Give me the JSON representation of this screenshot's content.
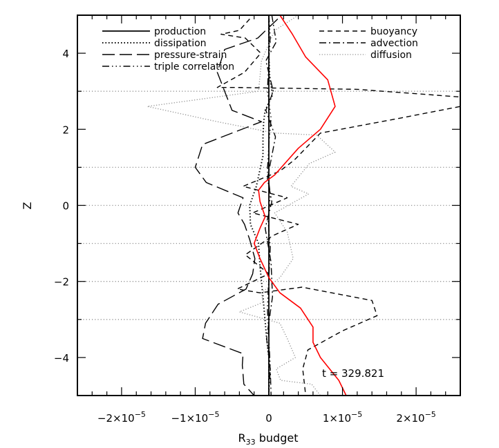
{
  "chart_data": {
    "type": "line",
    "title": "",
    "xlabel_main": "R",
    "xlabel_sub": "33",
    "xlabel_rest": " budget",
    "ylabel": "Z",
    "xlim": [
      -2.6e-05,
      2.6e-05
    ],
    "ylim": [
      -5,
      5
    ],
    "xticks": [
      {
        "value": -2e-05,
        "mant": "−2×10",
        "exp": "−5"
      },
      {
        "value": -1e-05,
        "mant": "−1×10",
        "exp": "−5"
      },
      {
        "value": 0,
        "mant": "0",
        "exp": ""
      },
      {
        "value": 1e-05,
        "mant": "1×10",
        "exp": "−5"
      },
      {
        "value": 2e-05,
        "mant": "2×10",
        "exp": "−5"
      }
    ],
    "yticks": [
      {
        "value": 4,
        "label": "4"
      },
      {
        "value": 2,
        "label": "2"
      },
      {
        "value": 0,
        "label": "0"
      },
      {
        "value": -2,
        "label": "−2"
      },
      {
        "value": -4,
        "label": "−4"
      }
    ],
    "horizontal_reference_lines": [
      3,
      1,
      0,
      -1,
      -2,
      -3
    ],
    "annotation": "t = 329.821",
    "legend": [
      {
        "name": "production",
        "style": "solid",
        "column": "left"
      },
      {
        "name": "dissipation",
        "style": "dotted",
        "column": "left"
      },
      {
        "name": "pressure-strain",
        "style": "longdash",
        "column": "left"
      },
      {
        "name": "triple correlation",
        "style": "dashdotdotdot",
        "column": "left"
      },
      {
        "name": "buoyancy",
        "style": "dashed",
        "column": "right"
      },
      {
        "name": "advection",
        "style": "dashdot",
        "column": "right"
      },
      {
        "name": "diffusion",
        "style": "dotted-gray",
        "column": "right"
      }
    ],
    "series": [
      {
        "style": "solid",
        "color": "#000000",
        "x": [
          0,
          0,
          0,
          0,
          0,
          0,
          0,
          0,
          0,
          0,
          0
        ],
        "y": [
          -5,
          -4,
          -3,
          -2,
          -1,
          0,
          1,
          2,
          3,
          4,
          5
        ]
      },
      {
        "style": "dotted",
        "color": "#000000",
        "x": [
          0,
          0,
          1e-07,
          5e-07,
          -5e-07,
          -7e-07,
          -8e-07,
          -8e-07,
          -1.7e-06,
          -2.6e-06,
          -2.5e-06,
          -1.4e-06,
          -1.2e-06,
          -8e-07,
          -3e-07,
          0,
          0,
          0
        ],
        "y": [
          5,
          4,
          3.4,
          2.9,
          2.5,
          2.2,
          1.8,
          1.3,
          0.5,
          0,
          -0.5,
          -1.0,
          -1.6,
          -2.4,
          -3.5,
          -4,
          -4.5,
          -5
        ]
      },
      {
        "style": "longdash",
        "color": "#000000",
        "x": [
          1.2e-06,
          -1.5e-06,
          -6e-06,
          -7e-06,
          -5e-06,
          -1e-06,
          -9e-06,
          -1e-05,
          -8.5e-06,
          -3.5e-06,
          -4.2e-06,
          -3.3e-06,
          -2.6e-06,
          -1.9e-06,
          -2.2e-06,
          -3.1e-06,
          -6.9e-06,
          -8.6e-06,
          -9e-06,
          -3.5e-06,
          -3.6e-06,
          -3.4e-06,
          -2e-06
        ],
        "y": [
          4.9,
          4.4,
          4.1,
          3.5,
          2.5,
          2.2,
          1.6,
          1.0,
          0.6,
          0.2,
          -0.2,
          -0.5,
          -0.9,
          -1.4,
          -1.8,
          -2.2,
          -2.6,
          -3.1,
          -3.5,
          -3.9,
          -4.2,
          -4.7,
          -5
        ]
      },
      {
        "style": "dashdotdotdot",
        "color": "#000000",
        "x": [
          0,
          2e-07,
          0,
          -2e-07,
          3e-07,
          0,
          -2e-07,
          2e-07,
          -1e-07,
          2e-07,
          0,
          -2e-07,
          0,
          2e-07,
          0
        ],
        "y": [
          5,
          4.4,
          3.8,
          3.0,
          2.3,
          1.6,
          0.9,
          0.3,
          -0.4,
          -1.1,
          -1.9,
          -2.7,
          -3.5,
          -4.3,
          -5
        ]
      },
      {
        "style": "dashed",
        "color": "#000000",
        "x": [
          -2.6e-06,
          -4e-06,
          -6.5e-06,
          -3.2e-06,
          -1.1e-06,
          -3.3e-06,
          -7e-06,
          -4.5e-06,
          1.2e-05,
          2.6e-05,
          2.6e-05,
          1.8e-05,
          7e-06,
          3.5e-06,
          1.5e-06,
          -3.5e-06,
          2.5e-06,
          -2.2e-06,
          4e-06,
          5e-07,
          -3.2e-06,
          0,
          -4.3e-06,
          -1.2e-06,
          4.5e-06,
          1.4e-05,
          1.47e-05,
          1e-05,
          5.3e-06,
          4.6e-06,
          5e-06
        ],
        "y": [
          4.9,
          4.6,
          4.5,
          4.4,
          4.0,
          3.5,
          3.1,
          3.1,
          3.05,
          2.85,
          2.6,
          2.3,
          1.9,
          1.2,
          0.9,
          0.5,
          0.2,
          -0.2,
          -0.5,
          -0.8,
          -1.3,
          -1.8,
          -2.2,
          -2.3,
          -2.15,
          -2.5,
          -2.9,
          -3.3,
          -3.8,
          -4.3,
          -5
        ]
      },
      {
        "style": "dashdot",
        "color": "#000000",
        "x": [
          4e-07,
          1e-06,
          -4e-07,
          6e-07,
          -4e-07,
          9e-07,
          -2e-07,
          4e-07,
          -5e-07,
          3e-07,
          5e-07,
          -3e-07,
          2e-07,
          3e-07
        ],
        "y": [
          5,
          4.3,
          3.8,
          3.0,
          2.5,
          1.8,
          0.7,
          0.1,
          -0.6,
          -1.5,
          -2.4,
          -3.5,
          -4.3,
          -5
        ]
      },
      {
        "style": "dotted-gray",
        "color": "#8f8f8f",
        "x": [
          4e-06,
          8e-07,
          -1e-06,
          -1.4e-06,
          -1.65e-05,
          -7e-06,
          8e-07,
          6.5e-06,
          9e-06,
          5.5e-06,
          3e-06,
          5.4e-06,
          8e-07,
          2.5e-06,
          3.3e-06,
          1.5e-06,
          -1e-06,
          -8e-07,
          -4e-06,
          1.5e-06,
          2.5e-06,
          3.6e-06,
          1e-06,
          1.6e-06,
          5.8e-06,
          7e-06
        ],
        "y": [
          5,
          4.6,
          3.8,
          3.0,
          2.6,
          2.2,
          1.9,
          1.85,
          1.4,
          1.1,
          0.5,
          0.3,
          -0.2,
          -0.7,
          -1.4,
          -1.9,
          -2.3,
          -2.55,
          -2.8,
          -3.1,
          -3.5,
          -4.0,
          -4.3,
          -4.6,
          -4.7,
          -5
        ]
      },
      {
        "style": "red",
        "color": "#ff0000",
        "x": [
          1.5e-06,
          3.2e-06,
          5e-06,
          8e-06,
          9e-06,
          7e-06,
          4e-06,
          8e-07,
          -6e-07,
          -1.4e-06,
          -1.2e-06,
          -5e-07,
          -1.2e-06,
          -2e-06,
          -1.2e-06,
          0,
          1.5e-06,
          4.3e-06,
          6e-06,
          6e-06,
          7e-06,
          9.5e-06,
          1.05e-05
        ],
        "y": [
          5,
          4.5,
          3.9,
          3.3,
          2.6,
          2.0,
          1.5,
          0.8,
          0.6,
          0.4,
          0.1,
          -0.3,
          -0.6,
          -1.0,
          -1.4,
          -1.9,
          -2.3,
          -2.7,
          -3.2,
          -3.6,
          -4.0,
          -4.6,
          -5
        ]
      }
    ]
  }
}
